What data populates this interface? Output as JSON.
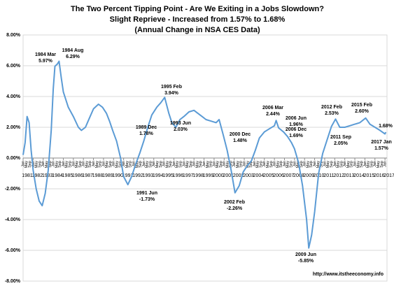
{
  "chart_data": {
    "type": "line",
    "title": [
      "The Two Percent Tipping Point - Are We Exiting in a Jobs Slowdown?",
      "Slight Reprieve - Increased from 1.57% to 1.68%",
      "(Annual Change in NSA CES Data)"
    ],
    "footer": "http://www.itstheeconomy.info",
    "xlim": [
      1981,
      2017.2
    ],
    "xticks": [
      1981,
      1982,
      1983,
      1984,
      1985,
      1986,
      1987,
      1988,
      1989,
      1990,
      1991,
      1992,
      1993,
      1994,
      1995,
      1996,
      1997,
      1998,
      1999,
      2000,
      2001,
      2002,
      2003,
      2004,
      2005,
      2006,
      2007,
      2008,
      2009,
      2010,
      2011,
      2012,
      2013,
      2014,
      2015,
      2016,
      2017
    ],
    "month_labels": [
      "Jan",
      "May",
      "Sep"
    ],
    "ylim": [
      -8,
      8
    ],
    "yticks": [
      {
        "value": -8,
        "label": "-8.00%"
      },
      {
        "value": -6,
        "label": "-6.00%"
      },
      {
        "value": -4,
        "label": "-4.00%"
      },
      {
        "value": -2,
        "label": "-2.00%"
      },
      {
        "value": 0,
        "label": "0.00%"
      },
      {
        "value": 2,
        "label": "2.00%"
      },
      {
        "value": 4,
        "label": "4.00%"
      },
      {
        "value": 6,
        "label": "6.00%"
      },
      {
        "value": 8,
        "label": "8.00%"
      }
    ],
    "grid": true,
    "series": [
      {
        "color": "#5b9bd5",
        "x": [
          1981.0,
          1981.2,
          1981.4,
          1981.6,
          1981.8,
          1982.0,
          1982.3,
          1982.6,
          1982.9,
          1983.2,
          1983.5,
          1983.8,
          1984.0,
          1984.17,
          1984.4,
          1984.58,
          1984.8,
          1985.0,
          1985.5,
          1986.0,
          1986.5,
          1986.8,
          1987.2,
          1987.6,
          1988.0,
          1988.5,
          1988.9,
          1989.3,
          1989.6,
          1989.92,
          1990.3,
          1990.7,
          1991.0,
          1991.42,
          1991.8,
          1992.2,
          1992.6,
          1993.0,
          1993.42,
          1993.8,
          1994.3,
          1994.7,
          1995.08,
          1995.5,
          1995.8,
          1996.2,
          1996.6,
          1997.0,
          1997.5,
          1998.0,
          1998.4,
          1998.8,
          1999.2,
          1999.7,
          2000.2,
          2000.5,
          2000.92,
          2001.3,
          2001.7,
          2002.08,
          2002.5,
          2002.9,
          2003.3,
          2003.7,
          2004.1,
          2004.5,
          2005.0,
          2005.5,
          2006.0,
          2006.17,
          2006.42,
          2006.92,
          2007.3,
          2007.7,
          2008.0,
          2008.4,
          2008.8,
          2009.2,
          2009.42,
          2009.7,
          2010.0,
          2010.4,
          2010.8,
          2011.2,
          2011.67,
          2012.08,
          2012.5,
          2013.0,
          2013.5,
          2014.0,
          2014.5,
          2015.08,
          2015.5,
          2016.0,
          2016.5,
          2017.0,
          2017.08
        ],
        "values": [
          0.2,
          1.0,
          2.7,
          2.3,
          0.5,
          -0.8,
          -2.0,
          -2.8,
          -3.1,
          -2.3,
          -0.8,
          1.8,
          4.5,
          5.97,
          6.1,
          6.29,
          5.2,
          4.3,
          3.3,
          2.7,
          2.0,
          1.8,
          2.0,
          2.6,
          3.2,
          3.5,
          3.3,
          2.9,
          2.4,
          1.78,
          1.1,
          0.0,
          -1.2,
          -1.73,
          -1.2,
          -0.4,
          0.3,
          1.1,
          2.03,
          2.8,
          3.3,
          3.6,
          3.94,
          2.9,
          2.3,
          2.0,
          2.5,
          2.7,
          3.0,
          3.1,
          2.9,
          2.7,
          2.5,
          2.4,
          2.3,
          2.5,
          1.48,
          0.5,
          -0.8,
          -2.26,
          -1.8,
          -0.9,
          -0.5,
          -0.2,
          0.5,
          1.3,
          1.7,
          1.9,
          2.1,
          2.44,
          1.96,
          1.69,
          1.4,
          1.0,
          0.6,
          -0.3,
          -1.8,
          -4.0,
          -5.85,
          -5.0,
          -3.5,
          -1.0,
          0.3,
          1.1,
          2.05,
          2.53,
          2.0,
          2.0,
          2.1,
          2.2,
          2.3,
          2.6,
          2.2,
          2.0,
          1.8,
          1.57,
          1.68
        ]
      }
    ],
    "annotations": [
      {
        "label": "1984 Mar",
        "value_label": "5.97%"
      },
      {
        "label": "1984 Aug",
        "value_label": "6.29%"
      },
      {
        "label": "1989 Dec",
        "value_label": "1.78%"
      },
      {
        "label": "1991 Jun",
        "value_label": "-1.73%"
      },
      {
        "label": "1993 Jun",
        "value_label": "2.03%"
      },
      {
        "label": "1995 Feb",
        "value_label": "3.94%"
      },
      {
        "label": "2000 Dec",
        "value_label": "1.48%"
      },
      {
        "label": "2002 Feb",
        "value_label": "-2.26%"
      },
      {
        "label": "2006 Mar",
        "value_label": "2.44%"
      },
      {
        "label": "2006 Jun",
        "value_label": "1.96%"
      },
      {
        "label": "2006 Dec",
        "value_label": "1.69%"
      },
      {
        "label": "2009 Jun",
        "value_label": "-5.85%"
      },
      {
        "label": "2011 Sep",
        "value_label": "2.05%"
      },
      {
        "label": "2012 Feb",
        "value_label": "2.53%"
      },
      {
        "label": "2015 Feb",
        "value_label": "2.60%"
      },
      {
        "label": "2017 Jan",
        "value_label": "1.57%"
      },
      {
        "value_label": "1.68%"
      }
    ]
  }
}
